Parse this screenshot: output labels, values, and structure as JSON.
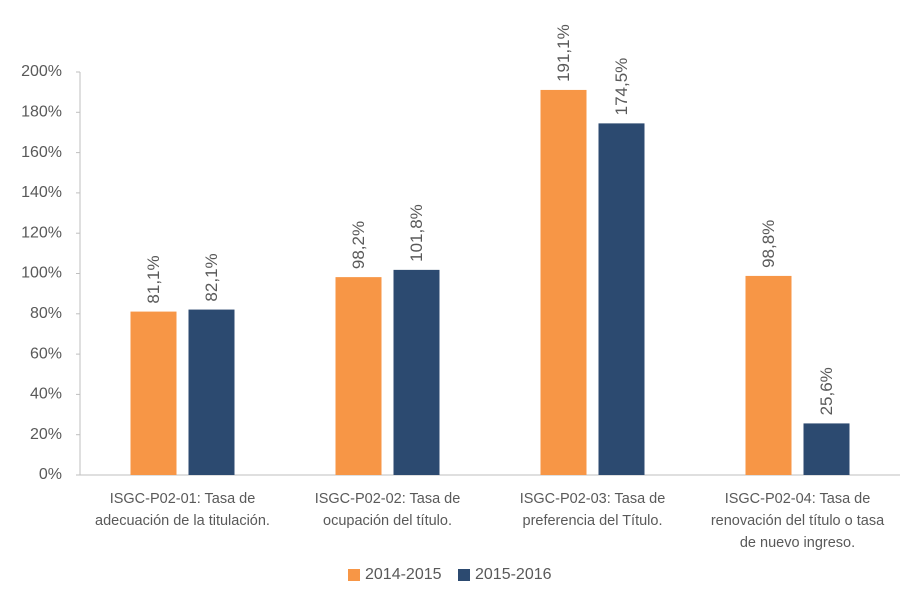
{
  "chart_data": {
    "type": "bar",
    "categories": [
      "ISGC-P02-01: Tasa de adecuación de la titulación.",
      "ISGC-P02-02: Tasa de ocupación del título.",
      "ISGC-P02-03: Tasa de preferencia del Título.",
      "ISGC-P02-04: Tasa de renovación del título o tasa de nuevo ingreso."
    ],
    "series": [
      {
        "name": "2014-2015",
        "color": "#f79646",
        "values": [
          81.1,
          98.2,
          191.1,
          98.8
        ],
        "value_labels": [
          "81,1%",
          "98,2%",
          "191,1%",
          "98,8%"
        ]
      },
      {
        "name": "2015-2016",
        "color": "#2c4a70",
        "values": [
          82.1,
          101.8,
          174.5,
          25.6
        ],
        "value_labels": [
          "82,1%",
          "101,8%",
          "174,5%",
          "25,6%"
        ]
      }
    ],
    "ylim": [
      0,
      200
    ],
    "yticks": [
      {
        "value": 0,
        "label": "0%"
      },
      {
        "value": 20,
        "label": "20%"
      },
      {
        "value": 40,
        "label": "40%"
      },
      {
        "value": 60,
        "label": "60%"
      },
      {
        "value": 80,
        "label": "80%"
      },
      {
        "value": 100,
        "label": "100%"
      },
      {
        "value": 120,
        "label": "120%"
      },
      {
        "value": 140,
        "label": "140%"
      },
      {
        "value": 160,
        "label": "160%"
      },
      {
        "value": 180,
        "label": "180%"
      },
      {
        "value": 200,
        "label": "200%"
      }
    ],
    "grid": false,
    "legend": "bottom"
  }
}
